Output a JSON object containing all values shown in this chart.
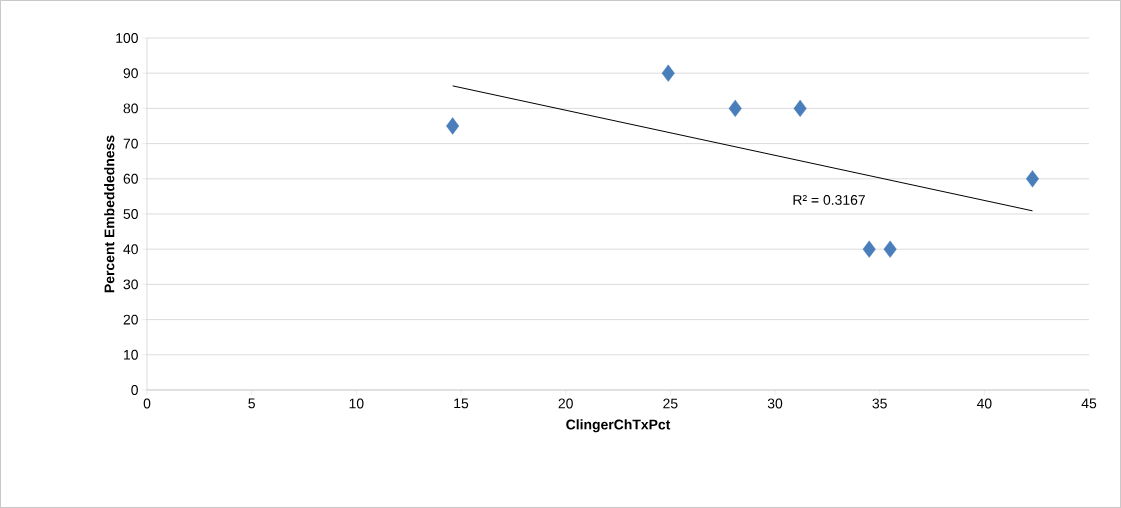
{
  "chart_data": {
    "type": "scatter",
    "xlabel": "ClingerChTxPct",
    "ylabel": "Percent Embeddedness",
    "xlim": [
      0,
      45
    ],
    "xticks": [
      0,
      5,
      10,
      15,
      20,
      25,
      30,
      35,
      40,
      45
    ],
    "ylim": [
      0,
      100
    ],
    "yticks": [
      0,
      10,
      20,
      30,
      40,
      50,
      60,
      70,
      80,
      90,
      100
    ],
    "grid": "y",
    "marker": "diamond",
    "series": [
      {
        "color": "#4a7ebb",
        "x": [
          14.6,
          24.9,
          28.1,
          31.2,
          34.5,
          35.5,
          42.3
        ],
        "values": [
          75,
          90,
          80,
          80,
          40,
          40,
          60
        ]
      },
      {
        "type": "line",
        "color": "#000000",
        "marker": "none",
        "x": [
          14.6,
          42.3
        ],
        "values": [
          86.4,
          50.9
        ]
      }
    ],
    "annotations": [
      "R² = 0.3167"
    ]
  }
}
